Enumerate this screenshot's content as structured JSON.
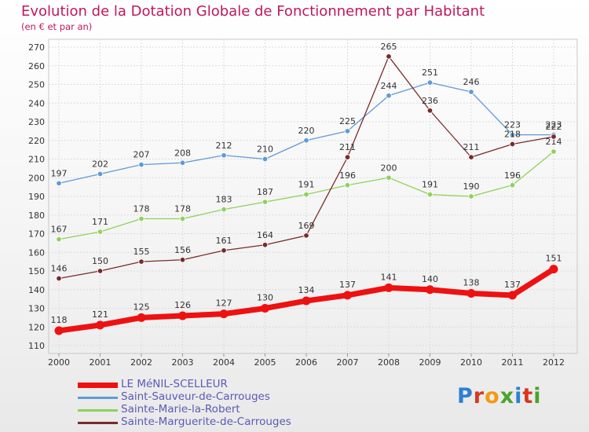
{
  "header": {
    "title": "Evolution de la Dotation Globale de Fonctionnement par Habitant",
    "subtitle": "(en € et par an)"
  },
  "logo": {
    "text": "Proxiti",
    "colors": [
      "#2f7fd1",
      "#d9371f",
      "#f29a11",
      "#4aa32f",
      "#2f7fd1",
      "#d9371f",
      "#4aa32f"
    ]
  },
  "chart_data": {
    "type": "line",
    "title": "Evolution de la Dotation Globale de Fonctionnement par Habitant",
    "subtitle": "(en € et par an)",
    "xlabel": "",
    "ylabel": "",
    "categories": [
      "2000",
      "2001",
      "2002",
      "2003",
      "2004",
      "2005",
      "2006",
      "2007",
      "2008",
      "2009",
      "2010",
      "2011",
      "2012"
    ],
    "ylim": [
      110,
      270
    ],
    "yticks": [
      110,
      120,
      130,
      140,
      150,
      160,
      170,
      180,
      190,
      200,
      210,
      220,
      230,
      240,
      250,
      260,
      270
    ],
    "grid": true,
    "legend_position": "bottom-left",
    "series": [
      {
        "name": "LE MéNIL-SCELLEUR",
        "color": "#ee1111",
        "emphasis": true,
        "values": [
          118,
          121,
          125,
          126,
          127,
          130,
          134,
          137,
          141,
          140,
          138,
          137,
          151
        ]
      },
      {
        "name": "Saint-Sauveur-de-Carrouges",
        "color": "#5f9ad6",
        "emphasis": false,
        "values": [
          197,
          202,
          207,
          208,
          212,
          210,
          220,
          225,
          244,
          251,
          246,
          223,
          223
        ]
      },
      {
        "name": "Sainte-Marie-la-Robert",
        "color": "#8ed25a",
        "emphasis": false,
        "values": [
          167,
          171,
          178,
          178,
          183,
          187,
          191,
          196,
          200,
          191,
          190,
          196,
          214
        ]
      },
      {
        "name": "Sainte-Marguerite-de-Carrouges",
        "color": "#7a2a2a",
        "emphasis": false,
        "values": [
          146,
          150,
          155,
          156,
          161,
          164,
          169,
          211,
          265,
          236,
          211,
          218,
          222
        ]
      }
    ]
  }
}
